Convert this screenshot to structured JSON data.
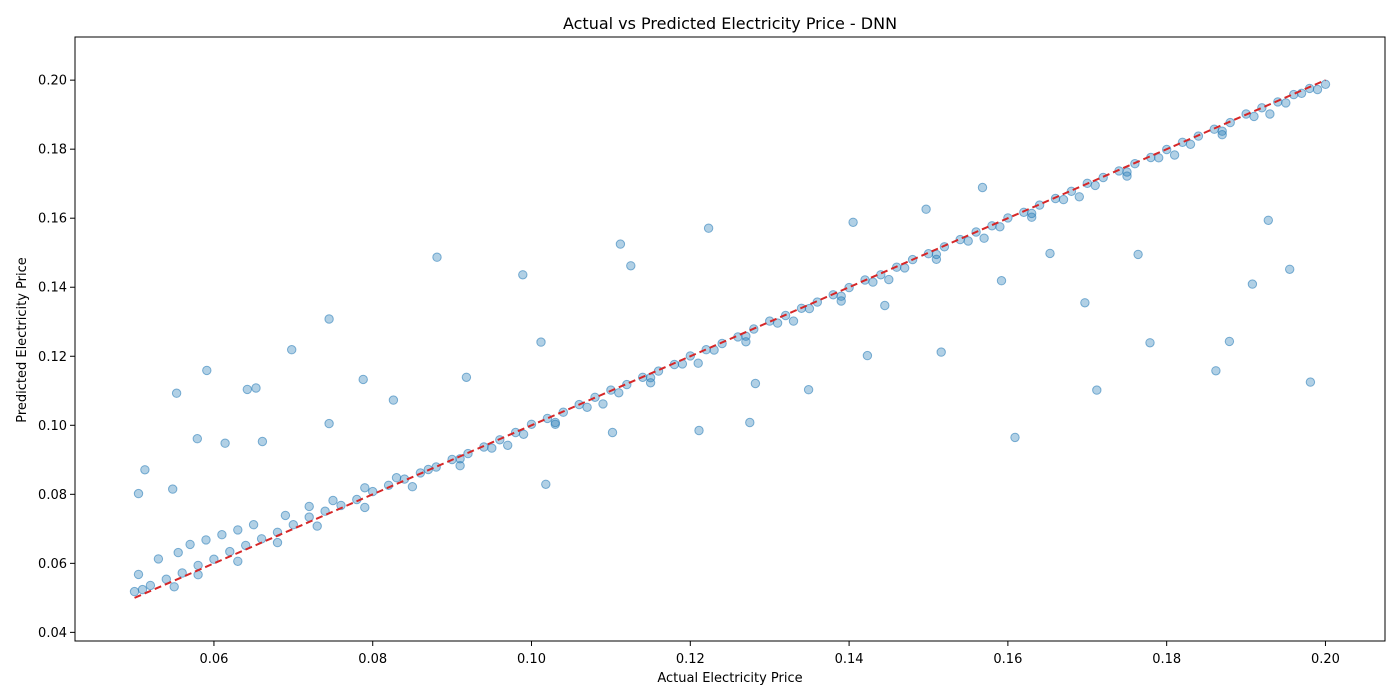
{
  "chart_data": {
    "type": "scatter",
    "title": "Actual vs Predicted Electricity Price - DNN",
    "xlabel": "Actual Electricity Price",
    "ylabel": "Predicted Electricity Price",
    "xlim": [
      0.0425,
      0.2075
    ],
    "ylim": [
      0.0375,
      0.2125
    ],
    "xticks": [
      0.06,
      0.08,
      0.1,
      0.12,
      0.14,
      0.16,
      0.18,
      0.2
    ],
    "xtick_labels": [
      "0.06",
      "0.08",
      "0.10",
      "0.12",
      "0.14",
      "0.16",
      "0.18",
      "0.20"
    ],
    "yticks": [
      0.04,
      0.06,
      0.08,
      0.1,
      0.12,
      0.14,
      0.16,
      0.18,
      0.2
    ],
    "ytick_labels": [
      "0.04",
      "0.06",
      "0.08",
      "0.10",
      "0.12",
      "0.14",
      "0.16",
      "0.18",
      "0.20"
    ],
    "grid": false,
    "colors": {
      "points": "#1f77b4",
      "reference_line": "#d62728"
    },
    "reference_line": {
      "style": "dashed",
      "from": [
        0.05,
        0.05
      ],
      "to": [
        0.2,
        0.2
      ]
    },
    "series": [
      {
        "points_x": [
          0.05,
          0.051,
          0.052,
          0.054,
          0.056,
          0.058,
          0.06,
          0.062,
          0.064,
          0.066,
          0.068,
          0.07,
          0.072,
          0.074,
          0.076,
          0.078,
          0.08,
          0.082,
          0.084,
          0.086,
          0.088,
          0.09,
          0.092,
          0.094,
          0.096,
          0.098,
          0.1,
          0.102,
          0.104,
          0.106,
          0.108,
          0.11,
          0.112,
          0.114,
          0.116,
          0.118,
          0.12,
          0.122,
          0.124,
          0.126,
          0.128,
          0.13,
          0.132,
          0.134,
          0.136,
          0.138,
          0.14,
          0.142,
          0.144,
          0.146,
          0.148,
          0.15,
          0.152,
          0.154,
          0.156,
          0.158,
          0.16,
          0.162,
          0.164,
          0.166,
          0.168,
          0.17,
          0.172,
          0.174,
          0.176,
          0.178,
          0.18,
          0.182,
          0.184,
          0.186,
          0.188,
          0.19,
          0.192,
          0.194,
          0.196,
          0.198,
          0.2,
          0.0505,
          0.053,
          0.0555,
          0.057,
          0.059,
          0.061,
          0.063,
          0.065,
          0.069,
          0.072,
          0.075,
          0.079,
          0.083,
          0.087,
          0.091,
          0.095,
          0.099,
          0.103,
          0.107,
          0.111,
          0.115,
          0.119,
          0.123,
          0.127,
          0.131,
          0.135,
          0.139,
          0.143,
          0.147,
          0.151,
          0.155,
          0.159,
          0.163,
          0.167,
          0.171,
          0.175,
          0.179,
          0.183,
          0.187,
          0.191,
          0.195,
          0.199,
          0.055,
          0.058,
          0.063,
          0.068,
          0.073,
          0.079,
          0.085,
          0.091,
          0.097,
          0.103,
          0.109,
          0.115,
          0.121,
          0.127,
          0.133,
          0.139,
          0.145,
          0.151,
          0.157,
          0.163,
          0.169,
          0.175,
          0.181,
          0.187,
          0.193,
          0.197,
          0.0505,
          0.0513,
          0.0548,
          0.0553,
          0.0591,
          0.0614,
          0.0642,
          0.0653,
          0.0698,
          0.0745,
          0.0788,
          0.0881,
          0.0989,
          0.1018,
          0.1112,
          0.1125,
          0.1223,
          0.1275,
          0.1405,
          0.1423,
          0.1497,
          0.1568,
          0.1609,
          0.1653,
          0.1712,
          0.1779,
          0.1862,
          0.1908,
          0.1955,
          0.1981,
          0.1928,
          0.1879,
          0.1764,
          0.1697,
          0.1592,
          0.1516,
          0.1445,
          0.1349,
          0.1282,
          0.1211,
          0.1102,
          0.1012,
          0.0918,
          0.0826,
          0.0745,
          0.0661,
          0.0579
        ],
        "points_y": [
          0.0518,
          0.0524,
          0.0536,
          0.0554,
          0.0572,
          0.0594,
          0.0612,
          0.0634,
          0.0652,
          0.0671,
          0.069,
          0.0712,
          0.0734,
          0.0751,
          0.0768,
          0.0785,
          0.0808,
          0.0826,
          0.0844,
          0.0862,
          0.0879,
          0.0901,
          0.0918,
          0.0937,
          0.0958,
          0.0979,
          0.1003,
          0.102,
          0.1038,
          0.106,
          0.1081,
          0.1102,
          0.1118,
          0.1139,
          0.1157,
          0.1176,
          0.1201,
          0.1219,
          0.1237,
          0.1256,
          0.1279,
          0.1302,
          0.1318,
          0.1339,
          0.1357,
          0.1378,
          0.1399,
          0.1421,
          0.1436,
          0.1458,
          0.148,
          0.1497,
          0.1517,
          0.1538,
          0.156,
          0.1578,
          0.1601,
          0.1617,
          0.1638,
          0.1657,
          0.1678,
          0.1701,
          0.1718,
          0.1737,
          0.1758,
          0.1776,
          0.1799,
          0.182,
          0.1838,
          0.1858,
          0.1877,
          0.1902,
          0.192,
          0.1937,
          0.1958,
          0.1976,
          0.1988,
          0.0568,
          0.0613,
          0.0631,
          0.0655,
          0.0668,
          0.0683,
          0.0697,
          0.0712,
          0.0739,
          0.0765,
          0.0782,
          0.0819,
          0.0848,
          0.0872,
          0.0903,
          0.0934,
          0.0974,
          0.1008,
          0.1052,
          0.1094,
          0.1138,
          0.1178,
          0.1218,
          0.1258,
          0.1296,
          0.1338,
          0.1374,
          0.1415,
          0.1456,
          0.1495,
          0.1534,
          0.1575,
          0.1614,
          0.1654,
          0.1695,
          0.1734,
          0.1775,
          0.1814,
          0.1852,
          0.1895,
          0.1934,
          0.1973,
          0.0532,
          0.0567,
          0.0606,
          0.066,
          0.0708,
          0.0762,
          0.0822,
          0.0883,
          0.0942,
          0.1003,
          0.1062,
          0.1123,
          0.118,
          0.1242,
          0.1302,
          0.136,
          0.1422,
          0.1481,
          0.1542,
          0.1603,
          0.1662,
          0.1722,
          0.1783,
          0.1842,
          0.1902,
          0.1962,
          0.0802,
          0.0871,
          0.0815,
          0.1093,
          0.1159,
          0.0948,
          0.1104,
          0.1108,
          0.1219,
          0.1308,
          0.1133,
          0.1487,
          0.1436,
          0.0829,
          0.1525,
          0.1462,
          0.1571,
          0.1008,
          0.1588,
          0.1202,
          0.1626,
          0.1689,
          0.0965,
          0.1498,
          0.1102,
          0.1239,
          0.1158,
          0.1409,
          0.1452,
          0.1125,
          0.1594,
          0.1243,
          0.1495,
          0.1355,
          0.1419,
          0.1212,
          0.1347,
          0.1103,
          0.1121,
          0.0985,
          0.0979,
          0.1241,
          0.1139,
          0.1073,
          0.1005,
          0.0953,
          0.0961
        ]
      }
    ]
  }
}
